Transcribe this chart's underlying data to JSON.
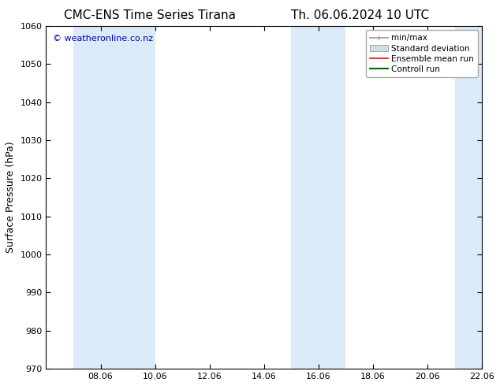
{
  "title_left": "CMC-ENS Time Series Tirana",
  "title_right": "Th. 06.06.2024 10 UTC",
  "ylabel": "Surface Pressure (hPa)",
  "ylim": [
    970,
    1060
  ],
  "yticks": [
    970,
    980,
    990,
    1000,
    1010,
    1020,
    1030,
    1040,
    1050,
    1060
  ],
  "xlim": [
    0,
    16
  ],
  "xtick_labels": [
    "08.06",
    "10.06",
    "12.06",
    "14.06",
    "16.06",
    "18.06",
    "20.06",
    "22.06"
  ],
  "xtick_positions": [
    2,
    4,
    6,
    8,
    10,
    12,
    14,
    16
  ],
  "shaded_bands": [
    {
      "x_start": 1.0,
      "x_end": 4.0,
      "color": "#daeaf8"
    },
    {
      "x_start": 9.0,
      "x_end": 11.0,
      "color": "#daeaf8"
    },
    {
      "x_start": 15.0,
      "x_end": 16.0,
      "color": "#daeaf8"
    }
  ],
  "background_color": "#ffffff",
  "plot_bg_color": "#ffffff",
  "watermark_text": "© weatheronline.co.nz",
  "watermark_color": "#0000bb",
  "legend_items": [
    {
      "label": "min/max",
      "color": "#999999",
      "lw": 1.2
    },
    {
      "label": "Standard deviation",
      "facecolor": "#d0dde8",
      "edgecolor": "#999999"
    },
    {
      "label": "Ensemble mean run",
      "color": "#ff0000",
      "lw": 1.2
    },
    {
      "label": "Controll run",
      "color": "#006600",
      "lw": 1.5
    }
  ],
  "title_fontsize": 11,
  "tick_fontsize": 8,
  "ylabel_fontsize": 9,
  "legend_fontsize": 7.5
}
